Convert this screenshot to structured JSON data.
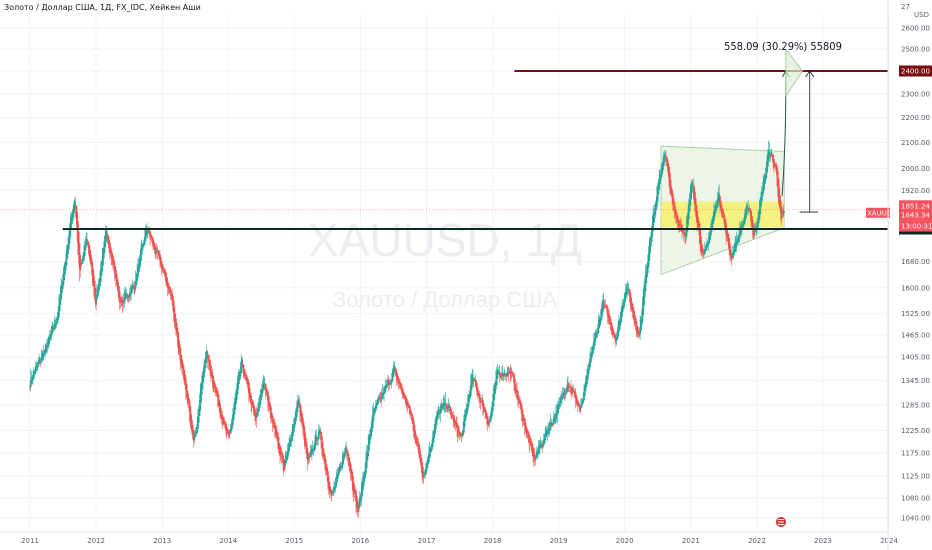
{
  "header": {
    "title": "Золото / Доллар США, 1Д, FX_IDC, Хейкен Аши"
  },
  "watermark": {
    "symbol": "XAUUSD, 1Д",
    "description": "Золото / Доллар США"
  },
  "colors": {
    "up": "#26a69a",
    "down": "#ef5350",
    "support": "#0e2a1c",
    "resistance": "#7a0e12",
    "triangle_fill": "#dcedd6",
    "triangle_stroke": "#9cc69a",
    "zone": "#f5ef5c",
    "arrow": "#1e5a3a"
  },
  "price_axis": {
    "currency": "USD",
    "top_partial": "27",
    "ticks": [
      "2600.00",
      "2500.00",
      "2400.00",
      "2300.00",
      "2200.00",
      "2100.00",
      "2000.00",
      "1920.00",
      "1851.24",
      "1843.34",
      "13:00:31",
      "1785.90",
      "1680.00",
      "1600.00",
      "1525.00",
      "1465.00",
      "1405.00",
      "1345.00",
      "1285.00",
      "1225.00",
      "1175.00",
      "1125.00",
      "1080.00",
      "1040.00"
    ],
    "ticker_label": "XAUUSD"
  },
  "annotations": {
    "measure_label": "558.09 (30.29%) 55809",
    "resistance_label": "2400.00",
    "support_label": "1785.90",
    "price_label_1": "1851.24",
    "price_label_2": "1843.34",
    "countdown": "13:00:31"
  },
  "chart_data": {
    "type": "candlestick",
    "title": "Золото / Доллар США, 1Д, FX_IDC, Хейкен Аши",
    "xlabel": "",
    "ylabel": "",
    "x_tick_labels": [
      "2011",
      "2012",
      "2013",
      "2014",
      "2015",
      "2016",
      "2017",
      "2018",
      "2019",
      "2020",
      "2021",
      "2022",
      "2023",
      "2024"
    ],
    "ylim": [
      1020,
      2700
    ],
    "y_scale": "log",
    "horizontal_lines": [
      {
        "price": 2400.0,
        "label": "2400.00"
      },
      {
        "price": 1785.9,
        "label": "1785.90"
      }
    ],
    "last_prices": [
      1851.24,
      1843.34
    ],
    "series_path": [
      {
        "date": "2011-01-01",
        "close": 1345
      },
      {
        "date": "2011-04-01",
        "close": 1430
      },
      {
        "date": "2011-06-01",
        "close": 1520
      },
      {
        "date": "2011-08-15",
        "close": 1820
      },
      {
        "date": "2011-09-05",
        "close": 1900
      },
      {
        "date": "2011-10-01",
        "close": 1640
      },
      {
        "date": "2011-11-10",
        "close": 1760
      },
      {
        "date": "2011-12-29",
        "close": 1560
      },
      {
        "date": "2012-02-28",
        "close": 1780
      },
      {
        "date": "2012-05-15",
        "close": 1550
      },
      {
        "date": "2012-08-01",
        "close": 1610
      },
      {
        "date": "2012-10-05",
        "close": 1790
      },
      {
        "date": "2012-12-30",
        "close": 1660
      },
      {
        "date": "2013-02-20",
        "close": 1570
      },
      {
        "date": "2013-04-16",
        "close": 1380
      },
      {
        "date": "2013-06-27",
        "close": 1200
      },
      {
        "date": "2013-08-28",
        "close": 1420
      },
      {
        "date": "2013-12-31",
        "close": 1200
      },
      {
        "date": "2014-03-14",
        "close": 1390
      },
      {
        "date": "2014-06-01",
        "close": 1245
      },
      {
        "date": "2014-07-10",
        "close": 1345
      },
      {
        "date": "2014-11-05",
        "close": 1140
      },
      {
        "date": "2015-01-22",
        "close": 1300
      },
      {
        "date": "2015-03-15",
        "close": 1150
      },
      {
        "date": "2015-05-15",
        "close": 1225
      },
      {
        "date": "2015-07-24",
        "close": 1080
      },
      {
        "date": "2015-10-15",
        "close": 1190
      },
      {
        "date": "2015-12-17",
        "close": 1050
      },
      {
        "date": "2016-03-10",
        "close": 1265
      },
      {
        "date": "2016-07-06",
        "close": 1370
      },
      {
        "date": "2016-10-05",
        "close": 1260
      },
      {
        "date": "2016-12-15",
        "close": 1125
      },
      {
        "date": "2017-02-27",
        "close": 1260
      },
      {
        "date": "2017-04-17",
        "close": 1290
      },
      {
        "date": "2017-07-10",
        "close": 1205
      },
      {
        "date": "2017-09-08",
        "close": 1355
      },
      {
        "date": "2017-12-12",
        "close": 1240
      },
      {
        "date": "2018-01-25",
        "close": 1365
      },
      {
        "date": "2018-04-11",
        "close": 1365
      },
      {
        "date": "2018-08-16",
        "close": 1160
      },
      {
        "date": "2018-12-31",
        "close": 1280
      },
      {
        "date": "2019-02-20",
        "close": 1345
      },
      {
        "date": "2019-05-01",
        "close": 1270
      },
      {
        "date": "2019-07-01",
        "close": 1420
      },
      {
        "date": "2019-09-04",
        "close": 1555
      },
      {
        "date": "2019-11-12",
        "close": 1450
      },
      {
        "date": "2020-01-08",
        "close": 1610
      },
      {
        "date": "2020-03-19",
        "close": 1460
      },
      {
        "date": "2020-05-18",
        "close": 1760
      },
      {
        "date": "2020-08-07",
        "close": 2070
      },
      {
        "date": "2020-09-25",
        "close": 1850
      },
      {
        "date": "2020-11-30",
        "close": 1765
      },
      {
        "date": "2021-01-06",
        "close": 1955
      },
      {
        "date": "2021-03-08",
        "close": 1680
      },
      {
        "date": "2021-06-01",
        "close": 1910
      },
      {
        "date": "2021-08-09",
        "close": 1690
      },
      {
        "date": "2021-11-16",
        "close": 1870
      },
      {
        "date": "2021-12-15",
        "close": 1755
      },
      {
        "date": "2022-03-08",
        "close": 2070
      },
      {
        "date": "2022-04-18",
        "close": 1990
      },
      {
        "date": "2022-05-13",
        "close": 1810
      },
      {
        "date": "2022-05-31",
        "close": 1843
      }
    ]
  }
}
